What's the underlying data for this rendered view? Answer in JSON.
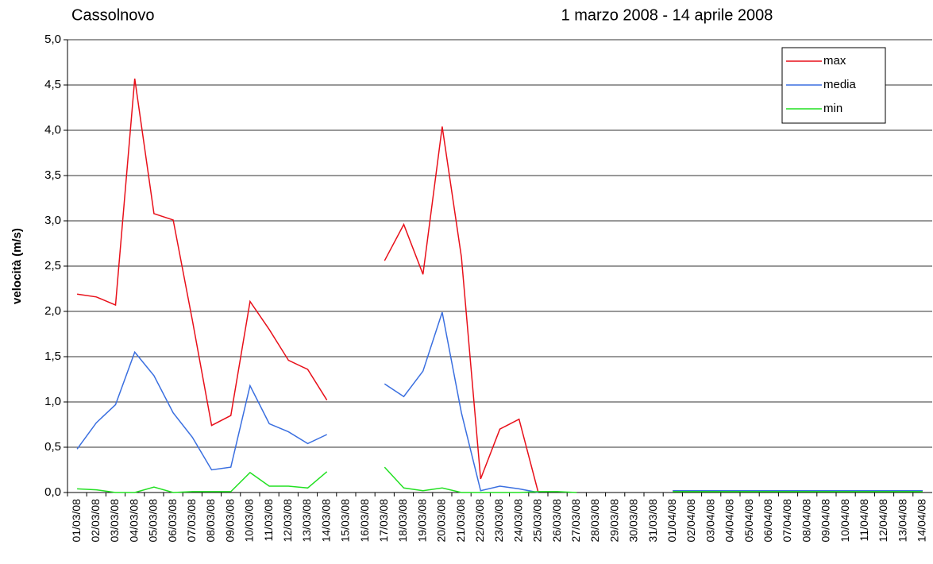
{
  "chart_data": {
    "type": "line",
    "title": "Cassolnovo",
    "subtitle": "1 marzo 2008 - 14 aprile 2008",
    "y_label": "velocità (m/s)",
    "categories": [
      "01/03/08",
      "02/03/08",
      "03/03/08",
      "04/03/08",
      "05/03/08",
      "06/03/08",
      "07/03/08",
      "08/03/08",
      "09/03/08",
      "10/03/08",
      "11/03/08",
      "12/03/08",
      "13/03/08",
      "14/03/08",
      "15/03/08",
      "16/03/08",
      "17/03/08",
      "18/03/08",
      "19/03/08",
      "20/03/08",
      "21/03/08",
      "22/03/08",
      "23/03/08",
      "24/03/08",
      "25/03/08",
      "26/03/08",
      "27/03/08",
      "28/03/08",
      "29/03/08",
      "30/03/08",
      "31/03/08",
      "01/04/08",
      "02/04/08",
      "03/04/08",
      "04/04/08",
      "05/04/08",
      "06/04/08",
      "07/04/08",
      "08/04/08",
      "09/04/08",
      "10/04/08",
      "11/04/08",
      "12/04/08",
      "13/04/08",
      "14/04/08"
    ],
    "series": [
      {
        "name": "max",
        "color": "#e8101a",
        "values": [
          2.19,
          2.16,
          2.07,
          4.57,
          3.08,
          3.01,
          1.9,
          0.74,
          0.85,
          2.11,
          1.8,
          1.46,
          1.36,
          1.02,
          null,
          null,
          2.56,
          2.96,
          2.41,
          4.04,
          2.6,
          0.15,
          0.7,
          0.81,
          0.0,
          null,
          null,
          null,
          null,
          null,
          null,
          0.02,
          0.02,
          0.02,
          0.02,
          0.02,
          0.02,
          0.02,
          0.02,
          0.02,
          0.02,
          0.02,
          0.02,
          0.02,
          0.02
        ]
      },
      {
        "name": "media",
        "color": "#3a6fe0",
        "values": [
          0.48,
          0.77,
          0.97,
          1.55,
          1.29,
          0.88,
          0.61,
          0.25,
          0.28,
          1.18,
          0.76,
          0.67,
          0.54,
          0.64,
          null,
          null,
          1.2,
          1.06,
          1.34,
          1.99,
          0.88,
          0.02,
          0.07,
          0.04,
          0.0,
          null,
          null,
          null,
          null,
          null,
          null,
          0.02,
          0.02,
          0.02,
          0.02,
          0.02,
          0.02,
          0.02,
          0.02,
          0.02,
          0.02,
          0.02,
          0.02,
          0.02,
          0.02
        ]
      },
      {
        "name": "min",
        "color": "#22e022",
        "values": [
          0.04,
          0.03,
          0.0,
          0.0,
          0.06,
          0.0,
          0.01,
          0.01,
          0.01,
          0.22,
          0.07,
          0.07,
          0.05,
          0.23,
          null,
          null,
          0.28,
          0.05,
          0.02,
          0.05,
          0.0,
          0.0,
          0.0,
          0.0,
          0.01,
          0.01,
          0.0,
          null,
          null,
          null,
          null,
          0.01,
          0.01,
          0.01,
          0.01,
          0.01,
          0.01,
          0.01,
          0.01,
          0.01,
          0.01,
          0.01,
          0.01,
          0.01,
          0.01
        ]
      }
    ],
    "ylim": [
      0,
      5
    ],
    "yticks": [
      {
        "value": 0,
        "label": "0,0"
      },
      {
        "value": 0.5,
        "label": "0,5"
      },
      {
        "value": 1,
        "label": "1,0"
      },
      {
        "value": 1.5,
        "label": "1,5"
      },
      {
        "value": 2,
        "label": "2,0"
      },
      {
        "value": 2.5,
        "label": "2,5"
      },
      {
        "value": 3,
        "label": "3,0"
      },
      {
        "value": 3.5,
        "label": "3,5"
      },
      {
        "value": 4,
        "label": "4,0"
      },
      {
        "value": 4.5,
        "label": "4,5"
      },
      {
        "value": 5,
        "label": "5,0"
      }
    ],
    "grid": true,
    "legend": "top-right"
  }
}
